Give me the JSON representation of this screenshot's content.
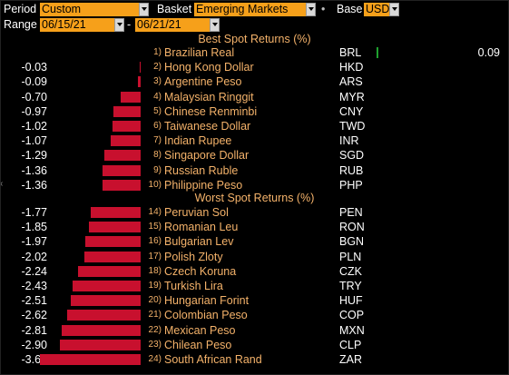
{
  "header": {
    "period_label": "Period",
    "period_value": "Custom",
    "basket_label": "Basket",
    "basket_value": "Emerging Markets",
    "base_label": "Base",
    "base_value": "USD",
    "range_label": "Range",
    "range_start": "06/15/21",
    "range_sep": "-",
    "range_end": "06/21/21"
  },
  "best": {
    "title": "Best Spot Returns (%)",
    "rows": [
      {
        "value": "",
        "num": 0.09,
        "rank": "1)",
        "name": "Brazilian Real",
        "code": "BRL",
        "right_value": "0.09"
      },
      {
        "value": "-0.03",
        "num": -0.03,
        "rank": "2)",
        "name": "Hong Kong Dollar",
        "code": "HKD",
        "right_value": ""
      },
      {
        "value": "-0.09",
        "num": -0.09,
        "rank": "3)",
        "name": "Argentine Peso",
        "code": "ARS",
        "right_value": ""
      },
      {
        "value": "-0.70",
        "num": -0.7,
        "rank": "4)",
        "name": "Malaysian Ringgit",
        "code": "MYR",
        "right_value": ""
      },
      {
        "value": "-0.97",
        "num": -0.97,
        "rank": "5)",
        "name": "Chinese Renminbi",
        "code": "CNY",
        "right_value": ""
      },
      {
        "value": "-1.02",
        "num": -1.02,
        "rank": "6)",
        "name": "Taiwanese Dollar",
        "code": "TWD",
        "right_value": ""
      },
      {
        "value": "-1.07",
        "num": -1.07,
        "rank": "7)",
        "name": "Indian Rupee",
        "code": "INR",
        "right_value": ""
      },
      {
        "value": "-1.29",
        "num": -1.29,
        "rank": "8)",
        "name": "Singapore Dollar",
        "code": "SGD",
        "right_value": ""
      },
      {
        "value": "-1.36",
        "num": -1.36,
        "rank": "9)",
        "name": "Russian Ruble",
        "code": "RUB",
        "right_value": ""
      },
      {
        "value": "-1.36",
        "num": -1.36,
        "rank": "10)",
        "name": "Philippine Peso",
        "code": "PHP",
        "right_value": ""
      }
    ]
  },
  "worst": {
    "title": "Worst Spot Returns (%)",
    "rows": [
      {
        "value": "-1.77",
        "num": -1.77,
        "rank": "14)",
        "name": "Peruvian Sol",
        "code": "PEN"
      },
      {
        "value": "-1.85",
        "num": -1.85,
        "rank": "15)",
        "name": "Romanian Leu",
        "code": "RON"
      },
      {
        "value": "-1.97",
        "num": -1.97,
        "rank": "16)",
        "name": "Bulgarian Lev",
        "code": "BGN"
      },
      {
        "value": "-2.02",
        "num": -2.02,
        "rank": "17)",
        "name": "Polish Zloty",
        "code": "PLN"
      },
      {
        "value": "-2.24",
        "num": -2.24,
        "rank": "18)",
        "name": "Czech Koruna",
        "code": "CZK"
      },
      {
        "value": "-2.43",
        "num": -2.43,
        "rank": "19)",
        "name": "Turkish Lira",
        "code": "TRY"
      },
      {
        "value": "-2.51",
        "num": -2.51,
        "rank": "20)",
        "name": "Hungarian Forint",
        "code": "HUF"
      },
      {
        "value": "-2.62",
        "num": -2.62,
        "rank": "21)",
        "name": "Colombian Peso",
        "code": "COP"
      },
      {
        "value": "-2.81",
        "num": -2.81,
        "rank": "22)",
        "name": "Mexican Peso",
        "code": "MXN"
      },
      {
        "value": "-2.90",
        "num": -2.9,
        "rank": "23)",
        "name": "Chilean Peso",
        "code": "CLP"
      },
      {
        "value": "-3.61",
        "num": -3.61,
        "rank": "24)",
        "name": "South African Rand",
        "code": "ZAR"
      }
    ]
  },
  "colors": {
    "accent": "#f6a01a",
    "label": "#f4b26a",
    "negative_bar": "#c8102e",
    "positive_bar": "#1fa12f",
    "background": "#000000"
  }
}
